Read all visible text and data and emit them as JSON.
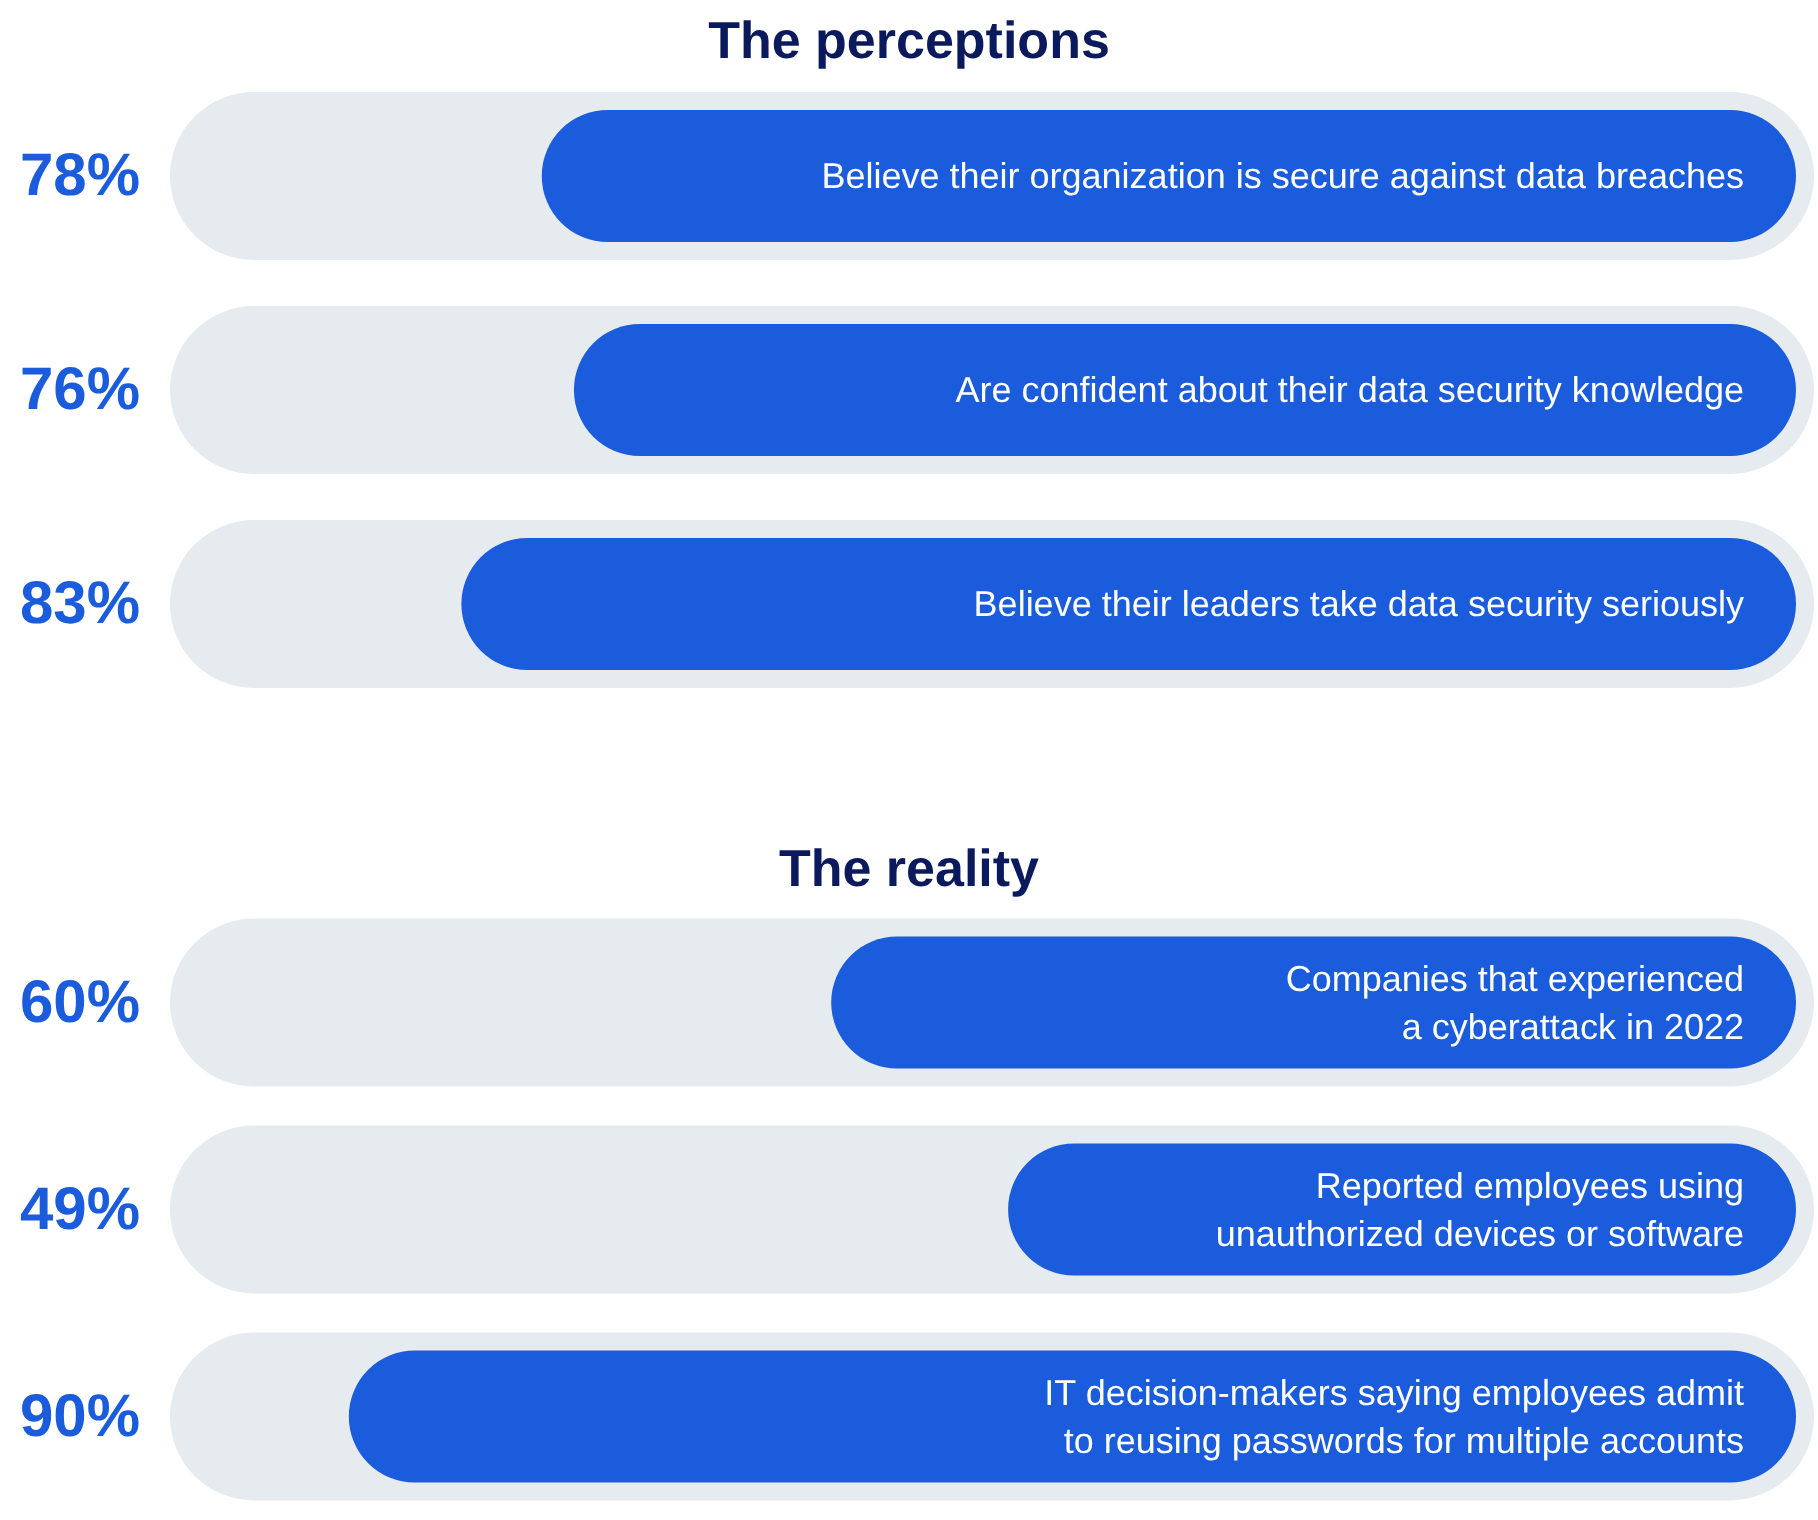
{
  "chart_data": [
    {
      "type": "bar",
      "title": "The perceptions",
      "orientation": "horizontal",
      "categories": [
        "Believe their organization is secure against data breaches",
        "Are confident about their data security knowledge",
        "Believe their leaders take data security seriously"
      ],
      "values": [
        78,
        76,
        83
      ],
      "value_labels": [
        "78%",
        "76%",
        "83%"
      ],
      "color": "#1a5cdb",
      "xlim": [
        100,
        0
      ],
      "tick_labels": "y"
    },
    {
      "type": "bar",
      "title": "The reality",
      "orientation": "horizontal",
      "categories": [
        "Companies that experienced\na cyberattack in 2022",
        "Reported employees using\nunauthorized devices or software",
        "IT decision-makers saying employees admit\nto reusing passwords for multiple accounts"
      ],
      "values": [
        60,
        49,
        90
      ],
      "value_labels": [
        "60%",
        "49%",
        "90%"
      ],
      "color": "#1a5cdb",
      "xlim": [
        100,
        0
      ],
      "tick_labels": "y"
    }
  ]
}
